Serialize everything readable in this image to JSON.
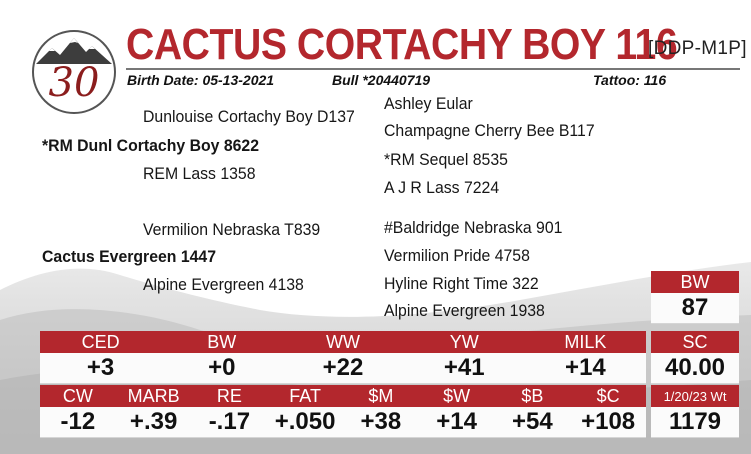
{
  "lot": {
    "number": "30"
  },
  "animal": {
    "name": "CACTUS CORTACHY BOY 116",
    "code": "[DDP-M1P]"
  },
  "info": {
    "birth_date": "Birth Date: 05-13-2021",
    "registration": "Bull *20440719",
    "tattoo": "Tattoo: 116"
  },
  "pedigree": {
    "sire": "*RM Dunl Cortachy Boy 8622",
    "sire_sire": "Dunlouise Cortachy Boy D137",
    "sire_sire_sire": "Ashley Eular",
    "sire_sire_dam": "Champagne Cherry Bee B117",
    "sire_dam": "REM Lass 1358",
    "sire_dam_sire": "*RM Sequel 8535",
    "sire_dam_dam": "A J R Lass 7224",
    "dam": "Cactus Evergreen 1447",
    "dam_sire": "Vermilion Nebraska T839",
    "dam_sire_sire": "#Baldridge Nebraska 901",
    "dam_sire_dam": "Vermilion Pride 4758",
    "dam_dam": "Alpine Evergreen 4138",
    "dam_dam_sire": "Hyline Right Time 322",
    "dam_dam_dam": "Alpine Evergreen 1938"
  },
  "epd_row1": [
    {
      "label": "CED",
      "value": "+3"
    },
    {
      "label": "BW",
      "value": "+0"
    },
    {
      "label": "WW",
      "value": "+22"
    },
    {
      "label": "YW",
      "value": "+41"
    },
    {
      "label": "MILK",
      "value": "+14"
    }
  ],
  "epd_row2": [
    {
      "label": "CW",
      "value": "-12"
    },
    {
      "label": "MARB",
      "value": "+.39"
    },
    {
      "label": "RE",
      "value": "-.17"
    },
    {
      "label": "FAT",
      "value": "+.050"
    },
    {
      "label": "$M",
      "value": "+38"
    },
    {
      "label": "$W",
      "value": "+14"
    },
    {
      "label": "$B",
      "value": "+54"
    },
    {
      "label": "$C",
      "value": "+108"
    }
  ],
  "actuals": {
    "bw": {
      "label": "BW",
      "value": "87"
    },
    "sc": {
      "label": "SC",
      "value": "40.00"
    },
    "weight": {
      "label": "1/20/23 Wt",
      "value": "1179"
    }
  },
  "colors": {
    "accent": "#b3272d",
    "logo_ring": "#8b1d1d"
  }
}
